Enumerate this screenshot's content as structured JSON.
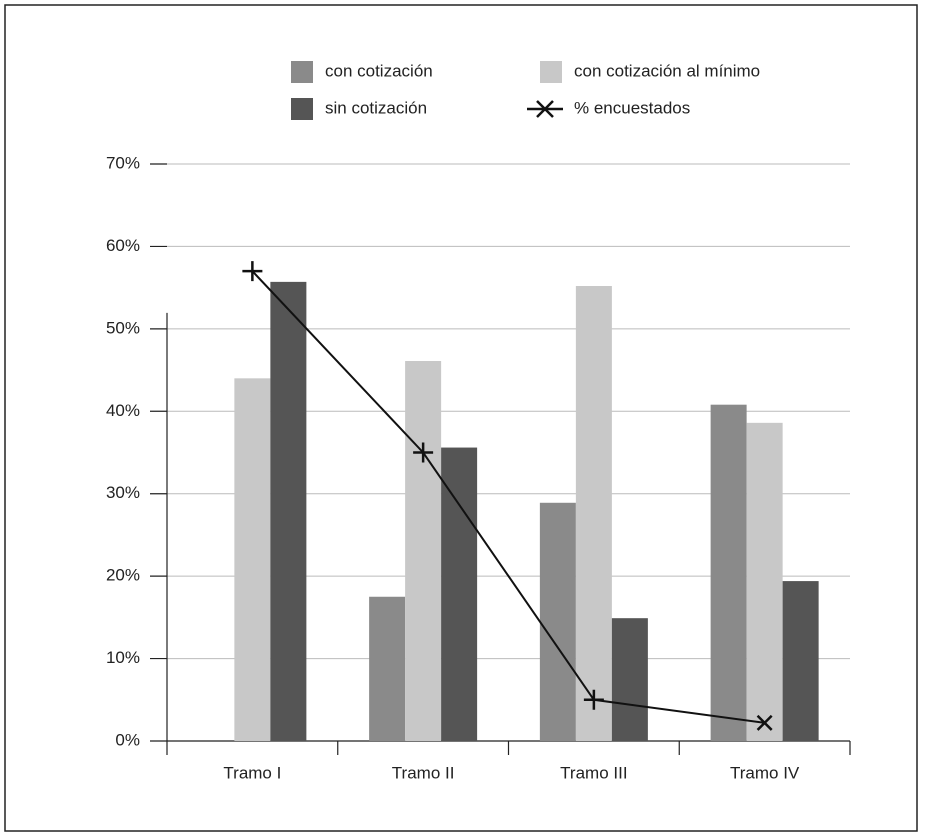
{
  "chart_data": {
    "type": "bar",
    "categories": [
      "Tramo I",
      "Tramo II",
      "Tramo III",
      "Tramo IV"
    ],
    "series": [
      {
        "name": "con cotización",
        "color": "#8a8a8a",
        "values": [
          0,
          17.5,
          28.9,
          40.8
        ]
      },
      {
        "name": "con cotización al mínimo",
        "color": "#c8c8c8",
        "values": [
          44,
          46.1,
          55.2,
          38.6
        ]
      },
      {
        "name": "sin cotización",
        "color": "#555555",
        "values": [
          55.7,
          35.6,
          14.9,
          19.4
        ]
      },
      {
        "name": "% encuestados",
        "color": "#111111",
        "type": "line",
        "values": [
          57,
          35,
          5,
          2.2
        ]
      }
    ],
    "ylim": [
      0,
      70
    ],
    "yticks": [
      {
        "value": 0,
        "label": "0%"
      },
      {
        "value": 10,
        "label": "10%"
      },
      {
        "value": 20,
        "label": "20%"
      },
      {
        "value": 30,
        "label": "30%"
      },
      {
        "value": 40,
        "label": "40%"
      },
      {
        "value": 50,
        "label": "50%"
      },
      {
        "value": 60,
        "label": "60%"
      },
      {
        "value": 70,
        "label": "70%"
      }
    ],
    "grid": true
  }
}
